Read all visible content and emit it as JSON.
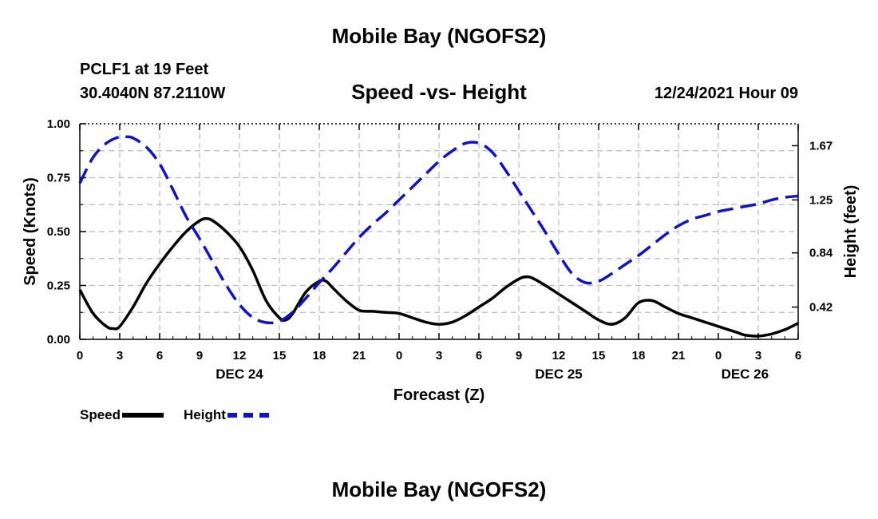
{
  "header": {
    "title": "Mobile Bay (NGOFS2)",
    "station": "PCLF1 at 19 Feet",
    "coords": "30.4040N  87.2110W",
    "subtitle": "Speed -vs- Height",
    "timestamp": "12/24/2021 Hour 09"
  },
  "footer": {
    "title": "Mobile Bay (NGOFS2)"
  },
  "legend": {
    "speed_label": "Speed",
    "height_label": "Height"
  },
  "colors": {
    "speed": "#000000",
    "height": "#1111cc",
    "grid": "#bbbbbb"
  },
  "chart_data": {
    "type": "line",
    "xlabel": "Forecast (Z)",
    "ylabel_left": "Speed (Knots)",
    "ylabel_right": "Height (feet)",
    "xlim": [
      0,
      54
    ],
    "x_tick_labels": [
      "0",
      "3",
      "6",
      "9",
      "12",
      "15",
      "18",
      "21",
      "0",
      "3",
      "6",
      "9",
      "12",
      "15",
      "18",
      "21",
      "0",
      "3",
      "6"
    ],
    "date_labels": [
      {
        "label": "DEC 24",
        "x": 12
      },
      {
        "label": "DEC 25",
        "x": 36
      },
      {
        "label": "DEC 26",
        "x": 50
      }
    ],
    "left_axis": {
      "ylim": [
        0,
        1.0
      ],
      "ticks": [
        "0.00",
        "0.25",
        "0.50",
        "0.75",
        "1.00"
      ]
    },
    "right_axis": {
      "ylim": [
        0.17,
        1.84
      ],
      "ticks": [
        "0.42",
        "0.84",
        "1.25",
        "1.67"
      ]
    },
    "grid": true,
    "series": [
      {
        "name": "Speed",
        "axis": "left",
        "style": "solid",
        "x": [
          0,
          1,
          2,
          2.5,
          3,
          4,
          5,
          6,
          7,
          8,
          9,
          9.5,
          10,
          11,
          12,
          13,
          14,
          15,
          15.5,
          16,
          17,
          18,
          18.5,
          19,
          20,
          21,
          22,
          23,
          24,
          25,
          26,
          27,
          28,
          29,
          30,
          31,
          32,
          33,
          33.5,
          34,
          35,
          36,
          37,
          38,
          39,
          40,
          41,
          42,
          43,
          44,
          45,
          46,
          47,
          48,
          49,
          49.5,
          50,
          51,
          52,
          53,
          54
        ],
        "values": [
          0.23,
          0.12,
          0.06,
          0.05,
          0.06,
          0.15,
          0.26,
          0.35,
          0.43,
          0.5,
          0.55,
          0.56,
          0.55,
          0.5,
          0.43,
          0.32,
          0.18,
          0.1,
          0.09,
          0.12,
          0.22,
          0.27,
          0.27,
          0.24,
          0.18,
          0.135,
          0.13,
          0.125,
          0.12,
          0.1,
          0.08,
          0.07,
          0.08,
          0.11,
          0.15,
          0.19,
          0.24,
          0.28,
          0.29,
          0.285,
          0.25,
          0.21,
          0.17,
          0.13,
          0.09,
          0.07,
          0.1,
          0.17,
          0.18,
          0.15,
          0.12,
          0.1,
          0.08,
          0.06,
          0.04,
          0.03,
          0.02,
          0.015,
          0.025,
          0.045,
          0.075
        ]
      },
      {
        "name": "Height",
        "axis": "right",
        "style": "dashed",
        "x": [
          0,
          1,
          2,
          3,
          3.5,
          4,
          5,
          6,
          7,
          8,
          9,
          10,
          11,
          12,
          13,
          14,
          15,
          16,
          17,
          18,
          19,
          20,
          21,
          22,
          23,
          24,
          25,
          26,
          27,
          28,
          29,
          30,
          31,
          32,
          33,
          34,
          35,
          36,
          37,
          38,
          39,
          40,
          41,
          42,
          43,
          44,
          45,
          46,
          47,
          48,
          49,
          50,
          51,
          52,
          53,
          54
        ],
        "values": [
          1.38,
          1.58,
          1.69,
          1.74,
          1.74,
          1.73,
          1.66,
          1.53,
          1.33,
          1.12,
          0.95,
          0.77,
          0.59,
          0.44,
          0.34,
          0.3,
          0.31,
          0.38,
          0.49,
          0.61,
          0.72,
          0.84,
          0.96,
          1.06,
          1.15,
          1.25,
          1.35,
          1.45,
          1.55,
          1.63,
          1.69,
          1.69,
          1.62,
          1.48,
          1.32,
          1.16,
          1.0,
          0.83,
          0.68,
          0.61,
          0.62,
          0.68,
          0.75,
          0.82,
          0.9,
          0.98,
          1.05,
          1.1,
          1.13,
          1.16,
          1.18,
          1.2,
          1.22,
          1.25,
          1.27,
          1.28
        ]
      }
    ]
  }
}
